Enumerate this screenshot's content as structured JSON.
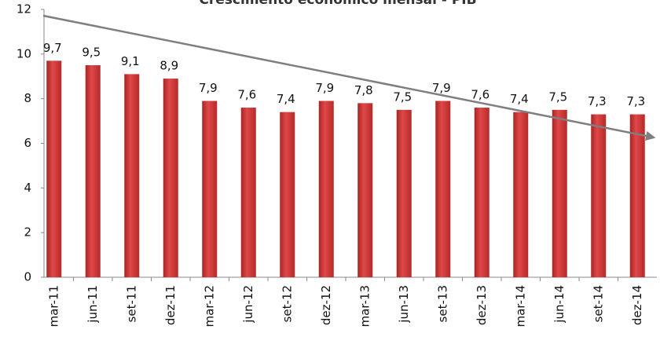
{
  "chart_data": {
    "type": "bar",
    "title": "Crescimento econômico mensal - PIB",
    "categories": [
      "mar-11",
      "jun-11",
      "set-11",
      "dez-11",
      "mar-12",
      "jun-12",
      "set-12",
      "dez-12",
      "mar-13",
      "jun-13",
      "set-13",
      "dez-13",
      "mar-14",
      "jun-14",
      "set-14",
      "dez-14"
    ],
    "values": [
      9.7,
      9.5,
      9.1,
      8.9,
      7.9,
      7.6,
      7.4,
      7.9,
      7.8,
      7.5,
      7.9,
      7.6,
      7.4,
      7.5,
      7.3,
      7.3
    ],
    "value_labels": [
      "9,7",
      "9,5",
      "9,1",
      "8,9",
      "7,9",
      "7,6",
      "7,4",
      "7,9",
      "7,8",
      "7,5",
      "7,9",
      "7,6",
      "7,4",
      "7,5",
      "7,3",
      "7,3"
    ],
    "color": "#d33b3b",
    "ylim": [
      0,
      12
    ],
    "yticks": [
      0,
      2,
      4,
      6,
      8,
      10,
      12
    ]
  }
}
